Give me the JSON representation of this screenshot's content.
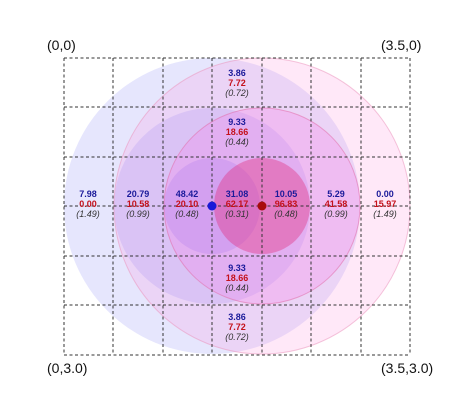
{
  "corners": {
    "top_left": "(0,0)",
    "top_right": "(3.5,0)",
    "bottom_left": "(0,3.0)",
    "bottom_right": "(3.5,3.0)"
  },
  "colors": {
    "blue_value": "#1a1a9a",
    "red_value": "#c4111b",
    "ratio_text": "#333333",
    "blue_source": "#1818d8",
    "red_source": "#a80c0c",
    "grid_line": "#333333"
  },
  "cells": [
    {
      "id": "top",
      "blue": "3.86",
      "red": "7.72",
      "ratio": "(0.72)"
    },
    {
      "id": "upper",
      "blue": "9.33",
      "red": "18.66",
      "ratio": "(0.44)"
    },
    {
      "id": "far-left",
      "blue": "7.98",
      "red": "0.00",
      "ratio": "(1.49)"
    },
    {
      "id": "left",
      "blue": "20.79",
      "red": "10.58",
      "ratio": "(0.99)"
    },
    {
      "id": "near-left",
      "blue": "48.42",
      "red": "20.10",
      "ratio": "(0.48)"
    },
    {
      "id": "center",
      "blue": "31.08",
      "red": "62.17",
      "ratio": "(0.31)"
    },
    {
      "id": "near-right",
      "blue": "10.05",
      "red": "96.83",
      "ratio": "(0.48)"
    },
    {
      "id": "right",
      "blue": "5.29",
      "red": "41.58",
      "ratio": "(0.99)"
    },
    {
      "id": "far-right",
      "blue": "0.00",
      "red": "15.97",
      "ratio": "(1.49)"
    },
    {
      "id": "lower",
      "blue": "9.33",
      "red": "18.66",
      "ratio": "(0.44)"
    },
    {
      "id": "bottom",
      "blue": "3.86",
      "red": "7.72",
      "ratio": "(0.72)"
    }
  ]
}
